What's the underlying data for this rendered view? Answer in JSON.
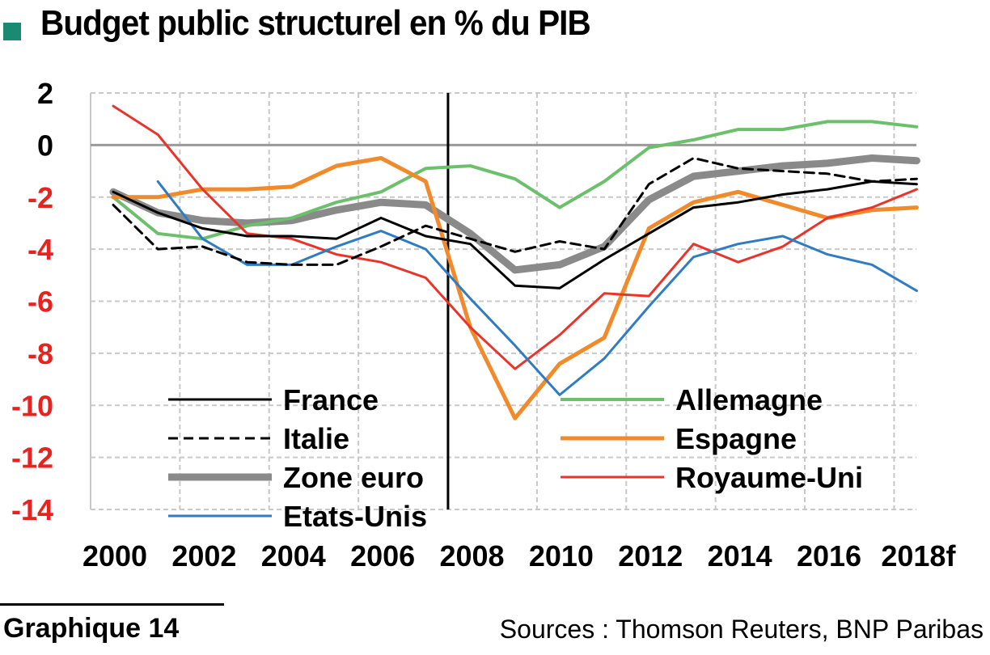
{
  "header": {
    "title": "Budget public structurel en % du PIB"
  },
  "footer": {
    "figure_label": "Graphique 14",
    "sources": "Sources : Thomson Reuters, BNP Paribas"
  },
  "colors": {
    "marker": "#1a8a72",
    "negative_tick": "#e8231f",
    "grid": "#c8c8c8"
  },
  "chart_data": {
    "type": "line",
    "title": "Budget public structurel en % du PIB",
    "x": [
      2000,
      2001,
      2002,
      2003,
      2004,
      2005,
      2006,
      2007,
      2008,
      2009,
      2010,
      2011,
      2012,
      2013,
      2014,
      2015,
      2016,
      2017,
      2018
    ],
    "x_tick_labels": [
      "2000",
      "2002",
      "2004",
      "2006",
      "2008",
      "2010",
      "2012",
      "2014",
      "2016",
      "2018f"
    ],
    "y_ticks": [
      2,
      0,
      -2,
      -4,
      -6,
      -8,
      -10,
      -12,
      -14
    ],
    "ylim": [
      -14,
      2
    ],
    "grid": true,
    "legend_position": "bottom-inside",
    "vertical_marker_x": 2007.5,
    "series": [
      {
        "name": "France",
        "color": "#000000",
        "style": "solid",
        "width": 3,
        "values": [
          -1.8,
          -2.6,
          -3.2,
          -3.5,
          -3.5,
          -3.6,
          -2.8,
          -3.5,
          -3.8,
          -5.4,
          -5.5,
          -4.4,
          -3.4,
          -2.4,
          -2.2,
          -1.9,
          -1.7,
          -1.4,
          -1.5
        ]
      },
      {
        "name": "Allemagne",
        "color": "#6cc06c",
        "style": "solid",
        "width": 4,
        "values": [
          -2.0,
          -3.4,
          -3.6,
          -3.1,
          -2.8,
          -2.2,
          -1.8,
          -0.9,
          -0.8,
          -1.3,
          -2.4,
          -1.4,
          -0.1,
          0.2,
          0.6,
          0.6,
          0.9,
          0.9,
          0.7
        ]
      },
      {
        "name": "Italie",
        "color": "#000000",
        "style": "dashed",
        "width": 3,
        "values": [
          -2.3,
          -4.0,
          -3.9,
          -4.5,
          -4.6,
          -4.6,
          -3.9,
          -3.1,
          -3.6,
          -4.1,
          -3.7,
          -4.0,
          -1.5,
          -0.5,
          -0.9,
          -1.0,
          -1.1,
          -1.4,
          -1.3
        ]
      },
      {
        "name": "Espagne",
        "color": "#f18a2b",
        "style": "solid",
        "width": 5,
        "values": [
          -2.0,
          -2.0,
          -1.7,
          -1.7,
          -1.6,
          -0.8,
          -0.5,
          -1.4,
          -7.0,
          -10.5,
          -8.4,
          -7.4,
          -3.2,
          -2.2,
          -1.8,
          -2.3,
          -2.8,
          -2.5,
          -2.4
        ]
      },
      {
        "name": "Zone euro",
        "color": "#8a8a8a",
        "style": "solid",
        "width": 9,
        "values": [
          -1.8,
          -2.6,
          -2.9,
          -3.0,
          -2.9,
          -2.5,
          -2.2,
          -2.3,
          -3.4,
          -4.8,
          -4.6,
          -3.9,
          -2.1,
          -1.2,
          -1.0,
          -0.8,
          -0.7,
          -0.5,
          -0.6
        ]
      },
      {
        "name": "Royaume-Uni",
        "color": "#e8352b",
        "style": "solid",
        "width": 3,
        "values": [
          1.5,
          0.4,
          -1.7,
          -3.4,
          -3.6,
          -4.2,
          -4.5,
          -5.1,
          -7.0,
          -8.6,
          -7.3,
          -5.7,
          -5.8,
          -3.8,
          -4.5,
          -3.9,
          -2.8,
          -2.4,
          -1.7
        ]
      },
      {
        "name": "Etats-Unis",
        "color": "#2f7cc2",
        "style": "solid",
        "width": 3,
        "values": [
          null,
          -1.4,
          -3.6,
          -4.6,
          -4.6,
          -3.9,
          -3.3,
          -4.0,
          -5.9,
          -7.7,
          -9.6,
          -8.2,
          -6.2,
          -4.3,
          -3.8,
          -3.5,
          -4.2,
          -4.6,
          -5.6
        ]
      }
    ]
  }
}
